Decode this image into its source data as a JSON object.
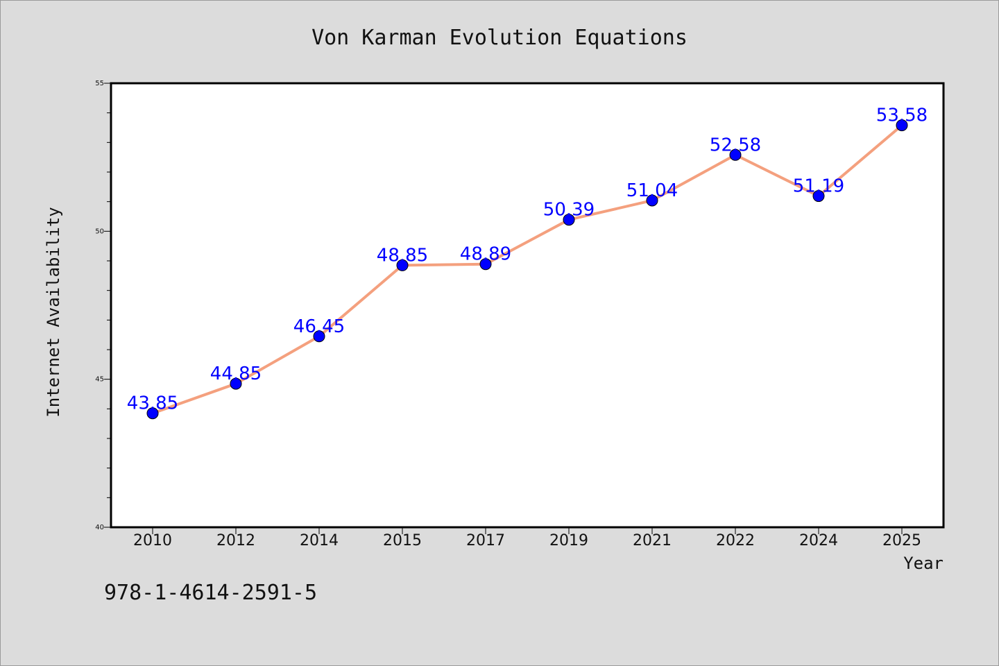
{
  "chart_data": {
    "type": "line",
    "title": "Von Karman Evolution Equations",
    "xlabel": "Year",
    "ylabel": "Internet Availability",
    "categories": [
      "2010",
      "2012",
      "2014",
      "2015",
      "2017",
      "2019",
      "2021",
      "2022",
      "2024",
      "2025"
    ],
    "series": [
      {
        "values": [
          43.85,
          44.85,
          46.45,
          48.85,
          48.89,
          50.39,
          51.04,
          52.58,
          51.19,
          53.58
        ],
        "labels": [
          "43.85",
          "44.85",
          "46.45",
          "48.85",
          "48.89",
          "50.39",
          "51.04",
          "52.58",
          "51.19",
          "53.58"
        ]
      }
    ],
    "ylim": [
      40,
      55
    ],
    "yticks": [
      "40",
      "45",
      "50",
      "55"
    ],
    "grid": false,
    "line_color": "#f4a07e",
    "marker_color": "#0000ff",
    "label_color": "#0000ff"
  },
  "annotation": "978-1-4614-2591-5"
}
